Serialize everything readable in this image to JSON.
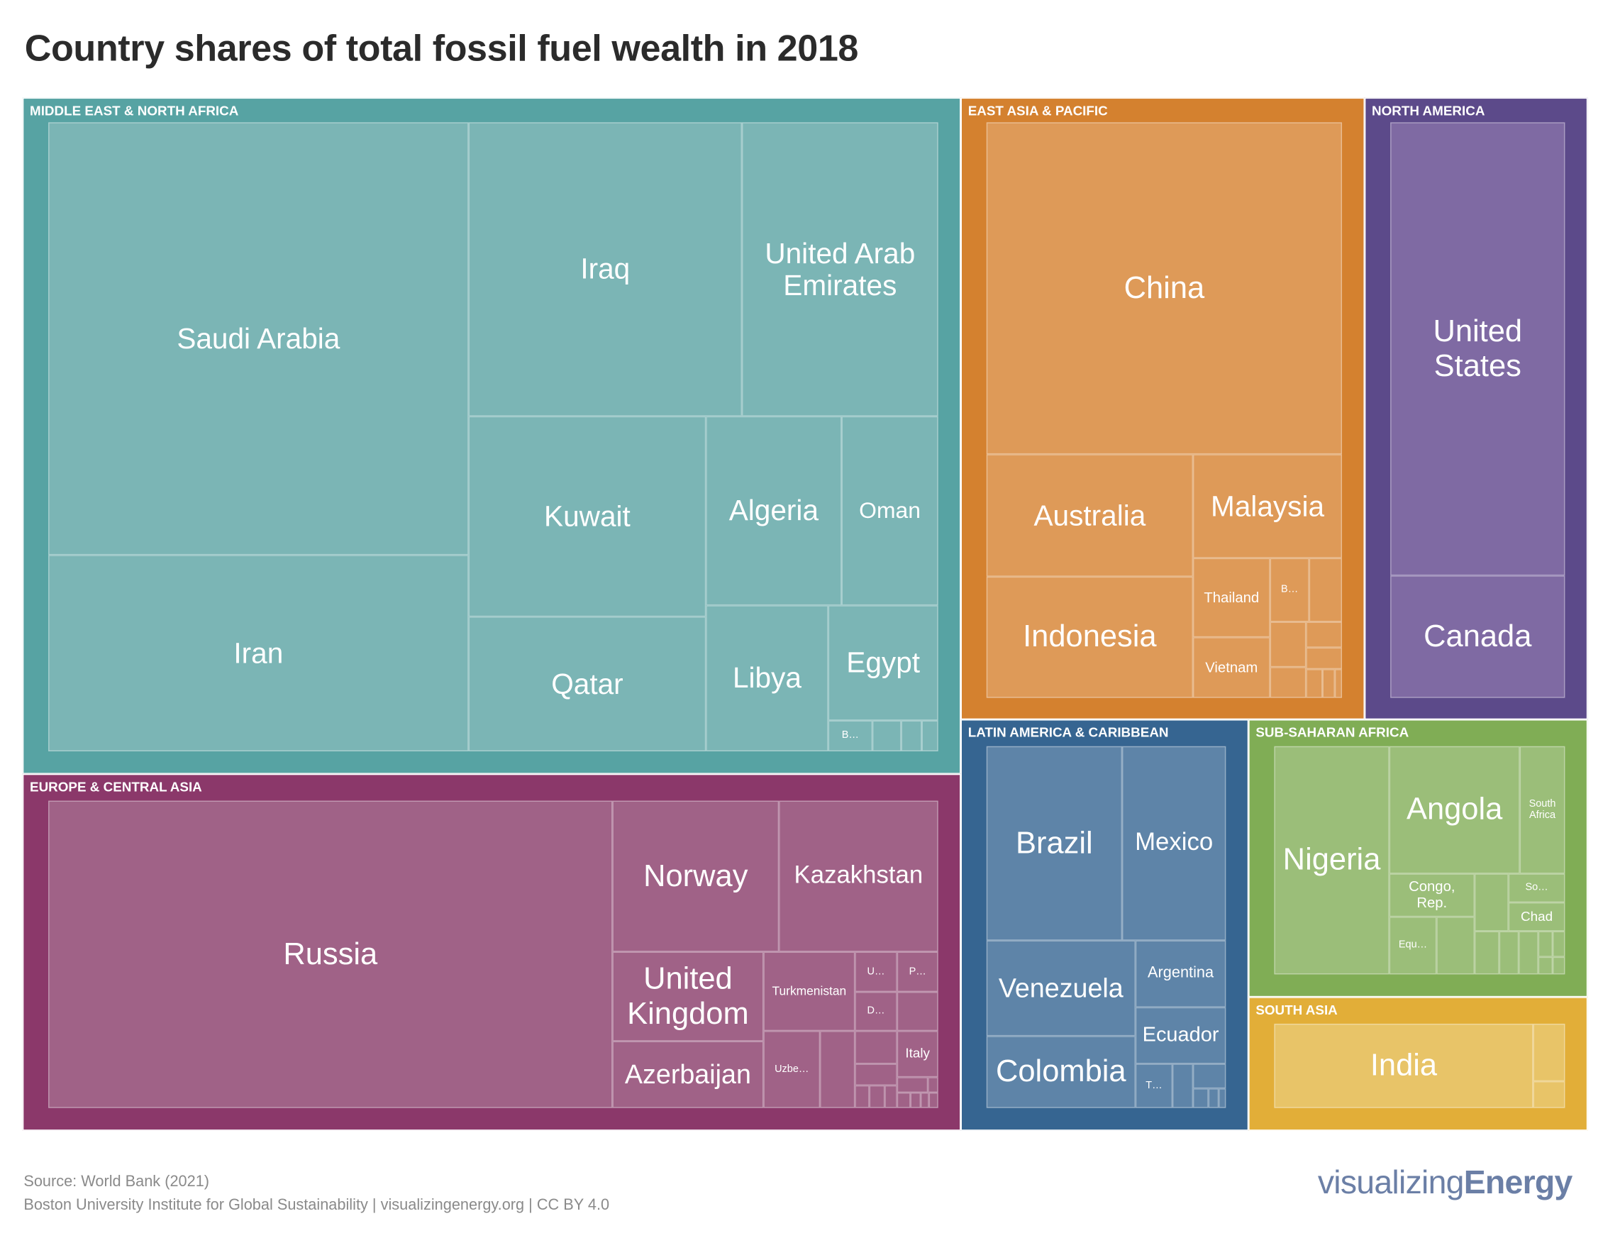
{
  "chart_data": {
    "type": "treemap",
    "title": "Country shares of total fossil fuel wealth in 2018",
    "value_note_estimated_from_area": true,
    "regions": [
      {
        "name": "MIDDLE EAST & NORTH AFRICA",
        "share_pct": 42.5,
        "color": "#57a3a3",
        "fill": "#7bb5b5",
        "countries": [
          {
            "name": "Saudi Arabia",
            "share_pct": 13.8
          },
          {
            "name": "Iran",
            "share_pct": 6.3
          },
          {
            "name": "Iraq",
            "share_pct": 6.1
          },
          {
            "name": "United Arab Emirates",
            "share_pct": 4.4
          },
          {
            "name": "Kuwait",
            "share_pct": 3.6
          },
          {
            "name": "Qatar",
            "share_pct": 2.4
          },
          {
            "name": "Algeria",
            "share_pct": 1.9
          },
          {
            "name": "Oman",
            "share_pct": 1.4
          },
          {
            "name": "Libya",
            "share_pct": 1.4
          },
          {
            "name": "Egypt",
            "share_pct": 1.0
          },
          {
            "name": "B…",
            "share_pct": 0.1
          }
        ]
      },
      {
        "name": "EUROPE & CENTRAL ASIA",
        "share_pct": 20.8,
        "color": "#8b386a",
        "fill": "#a06287",
        "countries": [
          {
            "name": "Russia",
            "share_pct": 13.2
          },
          {
            "name": "Norway",
            "share_pct": 1.9
          },
          {
            "name": "Kazakhstan",
            "share_pct": 1.8
          },
          {
            "name": "United Kingdom",
            "share_pct": 1.0
          },
          {
            "name": "Azerbaijan",
            "share_pct": 0.8
          },
          {
            "name": "Turkmenistan",
            "share_pct": 0.6
          },
          {
            "name": "Uzbe…",
            "share_pct": 0.3
          },
          {
            "name": "U…",
            "share_pct": 0.13
          },
          {
            "name": "P…",
            "share_pct": 0.13
          },
          {
            "name": "D…",
            "share_pct": 0.12
          },
          {
            "name": "Italy",
            "share_pct": 0.14
          }
        ]
      },
      {
        "name": "EAST ASIA & PACIFIC",
        "share_pct": 15.6,
        "color": "#d4812f",
        "fill": "#de9a58",
        "countries": [
          {
            "name": "China",
            "share_pct": 9.0
          },
          {
            "name": "Australia",
            "share_pct": 1.9
          },
          {
            "name": "Malaysia",
            "share_pct": 1.2
          },
          {
            "name": "Indonesia",
            "share_pct": 1.9
          },
          {
            "name": "Thailand",
            "share_pct": 0.5
          },
          {
            "name": "Vietnam",
            "share_pct": 0.4
          },
          {
            "name": "B…",
            "share_pct": 0.2
          }
        ]
      },
      {
        "name": "NORTH AMERICA",
        "share_pct": 7.6,
        "color": "#5c4a8a",
        "fill": "#7f6aa3",
        "countries": [
          {
            "name": "United States",
            "share_pct": 6.0
          },
          {
            "name": "Canada",
            "share_pct": 1.6
          }
        ]
      },
      {
        "name": "LATIN AMERICA & CARIBBEAN",
        "share_pct": 6.6,
        "color": "#366591",
        "fill": "#5e84a8",
        "countries": [
          {
            "name": "Brazil",
            "share_pct": 2.0
          },
          {
            "name": "Mexico",
            "share_pct": 1.5
          },
          {
            "name": "Venezuela",
            "share_pct": 1.1
          },
          {
            "name": "Colombia",
            "share_pct": 0.8
          },
          {
            "name": "Argentina",
            "share_pct": 0.5
          },
          {
            "name": "Ecuador",
            "share_pct": 0.4
          },
          {
            "name": "T…",
            "share_pct": 0.1
          }
        ]
      },
      {
        "name": "SUB-SAHARAN AFRICA",
        "share_pct": 5.1,
        "color": "#80ad55",
        "fill": "#9bbe79",
        "countries": [
          {
            "name": "Nigeria",
            "share_pct": 2.0
          },
          {
            "name": "Angola",
            "share_pct": 1.3
          },
          {
            "name": "South Africa",
            "share_pct": 0.4
          },
          {
            "name": "Congo, Rep.",
            "share_pct": 0.3
          },
          {
            "name": "So…",
            "share_pct": 0.12
          },
          {
            "name": "Chad",
            "share_pct": 0.12
          },
          {
            "name": "Equ…",
            "share_pct": 0.2
          }
        ]
      },
      {
        "name": "SOUTH ASIA",
        "share_pct": 1.8,
        "color": "#e2ae38",
        "fill": "#e8c468",
        "countries": [
          {
            "name": "India",
            "share_pct": 1.7
          }
        ]
      }
    ]
  },
  "footer": {
    "source": "Source: World Bank (2021)",
    "credit": "Boston University Institute for Global Sustainability | visualizingenergy.org | CC BY 4.0"
  },
  "logo": {
    "light": "visualizing",
    "bold": "Energy"
  }
}
